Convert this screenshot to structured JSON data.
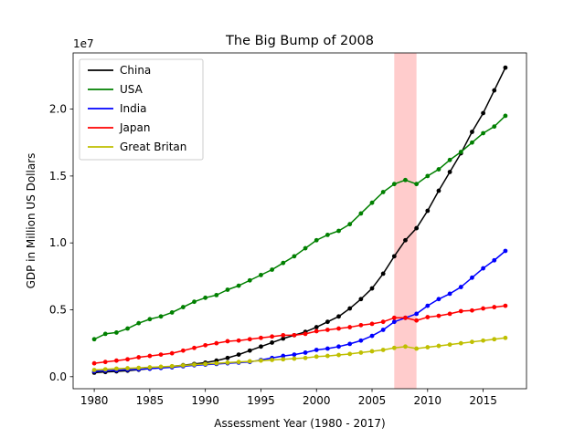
{
  "chart_data": {
    "type": "line",
    "title": "The Big Bump of 2008",
    "xlabel": "Assessment Year (1980 - 2017)",
    "ylabel": "GDP in Million US Dollars",
    "y_offset_label": "1e7",
    "x_ticks": [
      1980,
      1985,
      1990,
      1995,
      2000,
      2005,
      2010,
      2015
    ],
    "y_ticks": [
      0.0,
      0.5,
      1.0,
      1.5,
      2.0
    ],
    "y_tick_labels": [
      "0.0",
      "0.5",
      "1.0",
      "1.5",
      "2.0"
    ],
    "xlim": [
      1978.1,
      2018.9
    ],
    "ylim": [
      -0.09,
      2.42
    ],
    "y_scale": 10000000,
    "highlight_span": [
      2007,
      2009
    ],
    "highlight_color": "#ffcccc",
    "legend_position": "top-left",
    "x": [
      1980,
      1981,
      1982,
      1983,
      1984,
      1985,
      1986,
      1987,
      1988,
      1989,
      1990,
      1991,
      1992,
      1993,
      1994,
      1995,
      1996,
      1997,
      1998,
      1999,
      2000,
      2001,
      2002,
      2003,
      2004,
      2005,
      2006,
      2007,
      2008,
      2009,
      2010,
      2011,
      2012,
      2013,
      2014,
      2015,
      2016,
      2017
    ],
    "series": [
      {
        "name": "China",
        "color": "#000000",
        "values": [
          0.03,
          0.035,
          0.04,
          0.045,
          0.052,
          0.06,
          0.068,
          0.077,
          0.086,
          0.095,
          0.105,
          0.12,
          0.14,
          0.165,
          0.195,
          0.225,
          0.255,
          0.285,
          0.31,
          0.335,
          0.37,
          0.41,
          0.45,
          0.51,
          0.58,
          0.66,
          0.77,
          0.9,
          1.02,
          1.11,
          1.24,
          1.39,
          1.53,
          1.67,
          1.83,
          1.97,
          2.14,
          2.31
        ]
      },
      {
        "name": "USA",
        "color": "#008000",
        "values": [
          0.28,
          0.32,
          0.33,
          0.36,
          0.4,
          0.43,
          0.45,
          0.48,
          0.52,
          0.56,
          0.59,
          0.61,
          0.65,
          0.68,
          0.72,
          0.76,
          0.8,
          0.85,
          0.9,
          0.96,
          1.02,
          1.06,
          1.09,
          1.14,
          1.22,
          1.3,
          1.38,
          1.44,
          1.47,
          1.44,
          1.5,
          1.55,
          1.62,
          1.68,
          1.75,
          1.82,
          1.87,
          1.95
        ]
      },
      {
        "name": "India",
        "color": "#0000ff",
        "values": [
          0.04,
          0.045,
          0.048,
          0.052,
          0.055,
          0.06,
          0.065,
          0.07,
          0.078,
          0.085,
          0.09,
          0.095,
          0.1,
          0.105,
          0.11,
          0.125,
          0.14,
          0.155,
          0.165,
          0.18,
          0.2,
          0.21,
          0.225,
          0.245,
          0.27,
          0.305,
          0.35,
          0.41,
          0.44,
          0.47,
          0.53,
          0.58,
          0.62,
          0.67,
          0.74,
          0.81,
          0.87,
          0.94
        ]
      },
      {
        "name": "Japan",
        "color": "#ff0000",
        "values": [
          0.1,
          0.11,
          0.12,
          0.13,
          0.145,
          0.155,
          0.165,
          0.175,
          0.195,
          0.215,
          0.235,
          0.25,
          0.265,
          0.27,
          0.28,
          0.29,
          0.3,
          0.31,
          0.31,
          0.32,
          0.34,
          0.35,
          0.36,
          0.37,
          0.385,
          0.395,
          0.41,
          0.44,
          0.44,
          0.42,
          0.445,
          0.455,
          0.47,
          0.49,
          0.495,
          0.51,
          0.52,
          0.53
        ]
      },
      {
        "name": "Great Britan",
        "color": "#bfbf00",
        "values": [
          0.05,
          0.055,
          0.06,
          0.063,
          0.066,
          0.07,
          0.074,
          0.078,
          0.084,
          0.09,
          0.095,
          0.1,
          0.105,
          0.11,
          0.115,
          0.12,
          0.125,
          0.13,
          0.135,
          0.14,
          0.15,
          0.155,
          0.162,
          0.17,
          0.18,
          0.19,
          0.2,
          0.215,
          0.225,
          0.21,
          0.22,
          0.23,
          0.24,
          0.25,
          0.26,
          0.27,
          0.28,
          0.29
        ]
      }
    ]
  }
}
